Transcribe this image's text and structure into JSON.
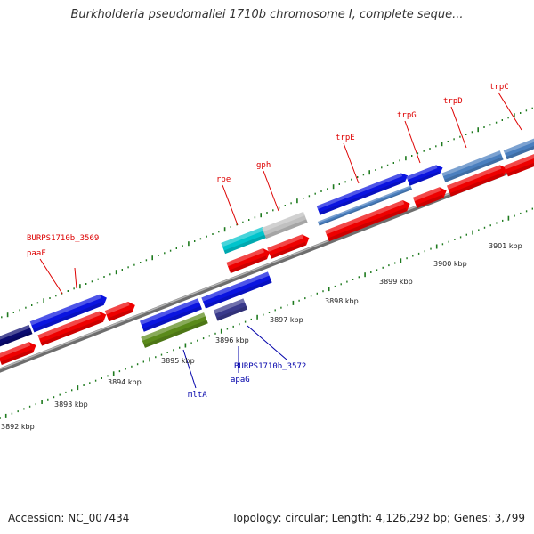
{
  "title": "Burkholderia pseudomallei 1710b chromosome I, complete seque...",
  "footer": {
    "accession": "Accession: NC_007434",
    "topology": "Topology: circular; Length: 4,126,292 bp; Genes: 3,799"
  },
  "colors": {
    "label_forward": "#dd0000",
    "label_reverse": "#0000aa",
    "tick": "#1e7a1e",
    "backbone": "#8a8a8a",
    "red_gene": "#ee0000",
    "blue_gene": "#0a14e0",
    "navy_gene": "#0a0a70",
    "steel_gene": "#4a7fbf",
    "cyan_gene": "#00c4cc",
    "gray_gene": "#c0c0c0",
    "olive_gene": "#5a8a1a",
    "purple_gene": "#3a3a8c"
  },
  "scale_labels": [
    {
      "text": "3892 kbp"
    },
    {
      "text": "3893 kbp"
    },
    {
      "text": "3894 kbp"
    },
    {
      "text": "3895 kbp"
    },
    {
      "text": "3896 kbp"
    },
    {
      "text": "3897 kbp"
    },
    {
      "text": "3898 kbp"
    },
    {
      "text": "3899 kbp"
    },
    {
      "text": "3900 kbp"
    },
    {
      "text": "3901 kbp"
    }
  ],
  "forward_labels": [
    {
      "text": "BURPS1710b_3569"
    },
    {
      "text": "paaF"
    },
    {
      "text": "rpe"
    },
    {
      "text": "gph"
    },
    {
      "text": "trpE"
    },
    {
      "text": "trpG"
    },
    {
      "text": "trpD"
    },
    {
      "text": "trpC"
    }
  ],
  "reverse_labels": [
    {
      "text": "BURPS1710b_3572"
    },
    {
      "text": "apaG"
    },
    {
      "text": "mltA"
    }
  ]
}
